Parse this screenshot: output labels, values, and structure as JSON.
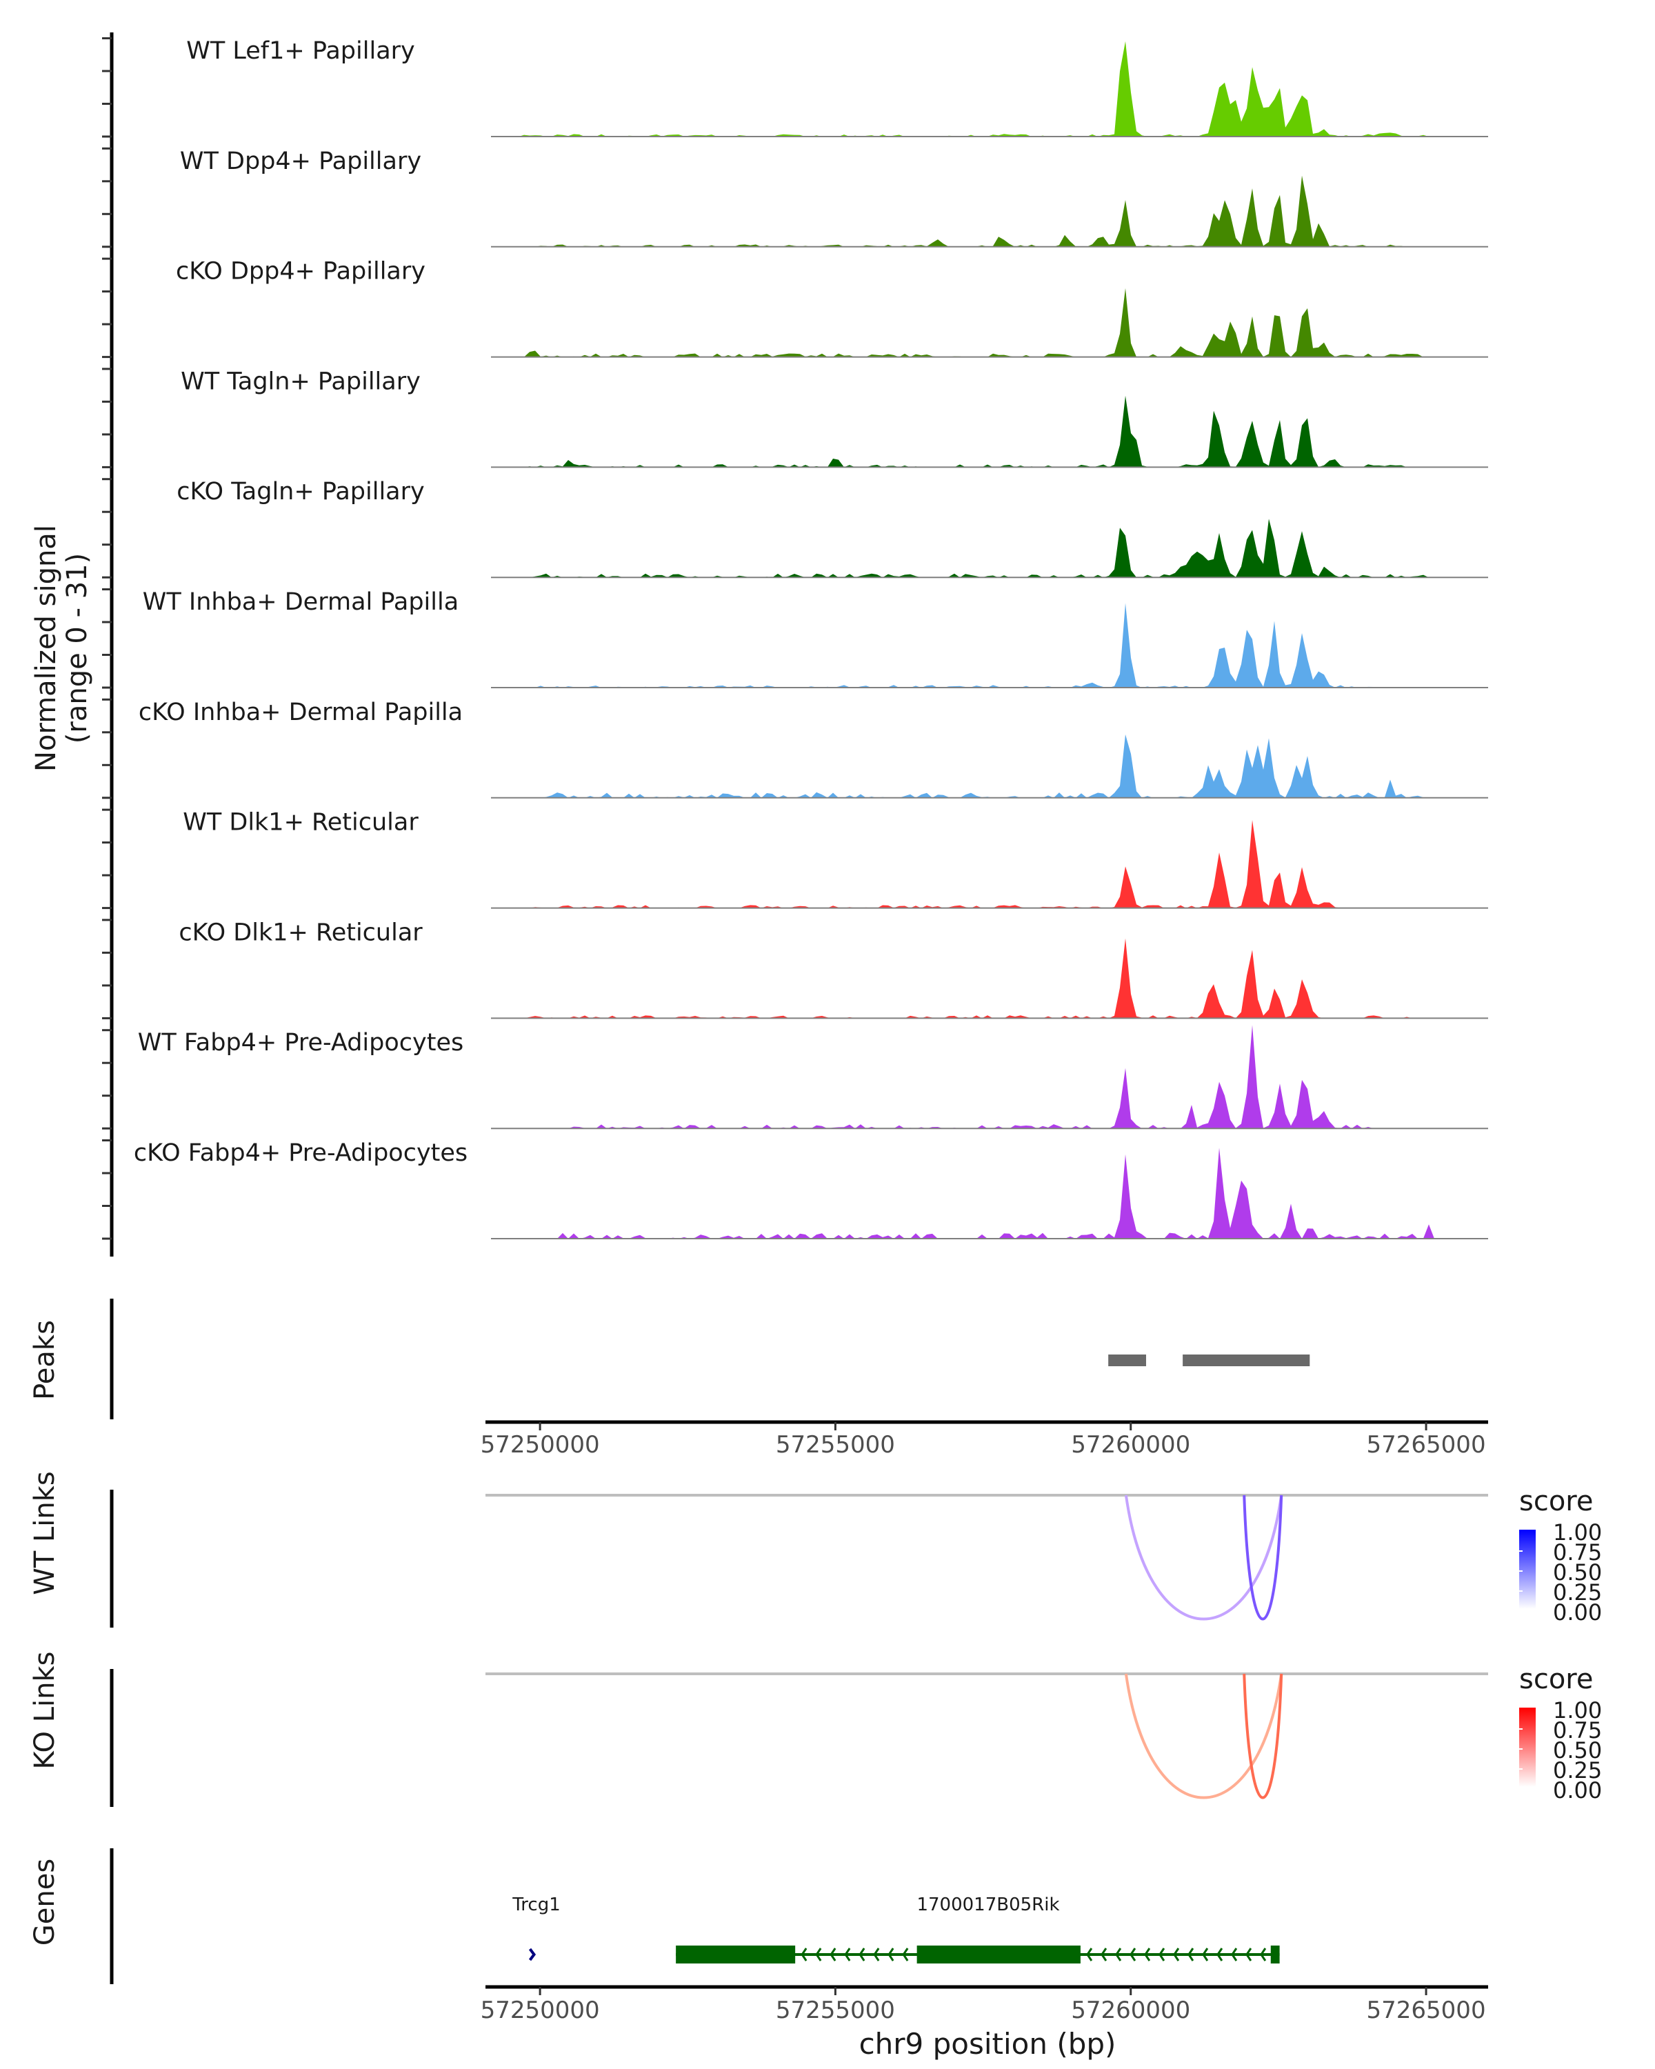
{
  "chart_data": {
    "type": "area",
    "title": "",
    "xlabel": "chr9 position (bp)",
    "ylabel": "Normalized signal\n(range 0 - 31)",
    "ylabel_lines": [
      "Normalized signal",
      "(range 0 - 31)"
    ],
    "ylim": [
      0,
      31
    ],
    "xlim": [
      57249170,
      57266050
    ],
    "x_ticks": [
      57250000,
      57255000,
      57260000,
      57265000
    ],
    "x_tick_labels": [
      "57250000",
      "57255000",
      "57260000",
      "57265000"
    ],
    "grid": false,
    "tracks": [
      {
        "name": "WT Lef1+ Papillary",
        "color": "#66cc00",
        "peaks": [
          [
            57259920,
            22,
            70
          ],
          [
            57259830,
            12,
            40
          ],
          [
            57261520,
            17,
            90
          ],
          [
            57261750,
            10,
            80
          ],
          [
            57262060,
            22,
            70
          ],
          [
            57262290,
            8,
            80
          ],
          [
            57262500,
            16,
            55
          ],
          [
            57262920,
            15,
            70
          ],
          [
            57262750,
            8,
            60
          ],
          [
            57263280,
            2,
            60
          ],
          [
            57264350,
            1.2,
            90
          ]
        ],
        "noise": [
          [
            57249700,
            57265000,
            0.9
          ]
        ]
      },
      {
        "name": "WT Dpp4+ Papillary",
        "color": "#448800",
        "peaks": [
          [
            57259900,
            16,
            60
          ],
          [
            57261450,
            9,
            90
          ],
          [
            57261650,
            14,
            70
          ],
          [
            57262050,
            21,
            65
          ],
          [
            57262480,
            20,
            60
          ],
          [
            57262920,
            22,
            70
          ],
          [
            57263200,
            6,
            60
          ],
          [
            57259500,
            4,
            60
          ],
          [
            57258900,
            3,
            60
          ],
          [
            57257800,
            3,
            60
          ],
          [
            57256700,
            2.5,
            60
          ]
        ],
        "noise": [
          [
            57250000,
            57265300,
            0.8
          ]
        ]
      },
      {
        "name": "cKO Dpp4+ Papillary",
        "color": "#448800",
        "peaks": [
          [
            57259900,
            18,
            55
          ],
          [
            57261400,
            9,
            70
          ],
          [
            57261700,
            14,
            70
          ],
          [
            57262050,
            12,
            60
          ],
          [
            57262480,
            14,
            60
          ],
          [
            57262950,
            16,
            65
          ],
          [
            57263250,
            5,
            70
          ],
          [
            57260900,
            3,
            80
          ],
          [
            57249880,
            3,
            40
          ]
        ],
        "noise": [
          [
            57249800,
            57265000,
            1.2
          ]
        ]
      },
      {
        "name": "WT Tagln+ Papillary",
        "color": "#006400",
        "peaks": [
          [
            57259900,
            17,
            60
          ],
          [
            57260050,
            10,
            50
          ],
          [
            57261450,
            16,
            80
          ],
          [
            57262050,
            12,
            90
          ],
          [
            57262500,
            14,
            60
          ],
          [
            57262950,
            14,
            70
          ],
          [
            57263400,
            3,
            60
          ],
          [
            57255000,
            3,
            40
          ],
          [
            57250500,
            3,
            50
          ]
        ],
        "noise": [
          [
            57249800,
            57264700,
            1.0
          ]
        ]
      },
      {
        "name": "cKO Tagln+ Papillary",
        "color": "#006400",
        "peaks": [
          [
            57259850,
            14,
            70
          ],
          [
            57261100,
            6,
            200
          ],
          [
            57261500,
            11,
            70
          ],
          [
            57262050,
            15,
            90
          ],
          [
            57262380,
            20,
            60
          ],
          [
            57262900,
            14,
            80
          ],
          [
            57263300,
            3,
            60
          ]
        ],
        "noise": [
          [
            57249800,
            57265100,
            1.3
          ]
        ]
      },
      {
        "name": "WT Inhba+ Dermal Papilla",
        "color": "#5daaeb",
        "peaks": [
          [
            57259920,
            22,
            60
          ],
          [
            57261550,
            12,
            100
          ],
          [
            57261980,
            20,
            80
          ],
          [
            57262430,
            18,
            60
          ],
          [
            57262900,
            17,
            70
          ],
          [
            57263200,
            6,
            80
          ],
          [
            57259300,
            1.5,
            80
          ]
        ],
        "noise": [
          [
            57250000,
            57264300,
            0.9
          ]
        ]
      },
      {
        "name": "cKO Inhba+ Dermal Papilla",
        "color": "#5daaeb",
        "peaks": [
          [
            57259930,
            22,
            60
          ],
          [
            57261300,
            9,
            60
          ],
          [
            57261500,
            10,
            60
          ],
          [
            57261950,
            14,
            60
          ],
          [
            57262150,
            16,
            60
          ],
          [
            57262350,
            14,
            60
          ],
          [
            57262800,
            11,
            60
          ],
          [
            57263000,
            11,
            60
          ],
          [
            57264400,
            5,
            40
          ]
        ],
        "noise": [
          [
            57249980,
            57265100,
            1.9
          ]
        ]
      },
      {
        "name": "WT Dlk1+ Reticular",
        "color": "#ff3333",
        "peaks": [
          [
            57259920,
            15,
            60
          ],
          [
            57261500,
            17,
            70
          ],
          [
            57262080,
            23,
            70
          ],
          [
            57262480,
            13,
            60
          ],
          [
            57262900,
            11,
            80
          ],
          [
            57263300,
            2,
            80
          ]
        ],
        "noise": [
          [
            57249850,
            57263300,
            1.0
          ]
        ]
      },
      {
        "name": "cKO Dlk1+ Reticular",
        "color": "#ff3333",
        "peaks": [
          [
            57259900,
            20,
            70
          ],
          [
            57261400,
            9,
            90
          ],
          [
            57262030,
            21,
            70
          ],
          [
            57262450,
            10,
            60
          ],
          [
            57262930,
            12,
            90
          ]
        ],
        "noise": [
          [
            57249800,
            57265100,
            1.0
          ]
        ]
      },
      {
        "name": "WT Fabp4+ Pre-Adipocytes",
        "color": "#b03ceb",
        "peaks": [
          [
            57259900,
            14,
            60
          ],
          [
            57261500,
            14,
            90
          ],
          [
            57262050,
            28,
            60
          ],
          [
            57262520,
            14,
            60
          ],
          [
            57262920,
            18,
            70
          ],
          [
            57263250,
            4,
            90
          ],
          [
            57261020,
            6,
            40
          ]
        ],
        "noise": [
          [
            57250500,
            57264300,
            1.5
          ]
        ]
      },
      {
        "name": "cKO Fabp4+ Pre-Adipocytes",
        "color": "#b03ceb",
        "peaks": [
          [
            57259920,
            20,
            70
          ],
          [
            57261510,
            25,
            60
          ],
          [
            57261900,
            17,
            100
          ],
          [
            57262720,
            12,
            50
          ],
          [
            57263050,
            5,
            40
          ],
          [
            57265030,
            6,
            25
          ]
        ],
        "noise": [
          [
            57250300,
            57265050,
            2.0
          ]
        ]
      }
    ],
    "peaks_track": {
      "label": "Peaks",
      "color": "#696969",
      "regions": [
        [
          57259620,
          57260260
        ],
        [
          57260880,
          57263030
        ]
      ]
    },
    "links_tracks": [
      {
        "label": "WT Links",
        "legend_title": "score",
        "high_color": "#0000ff",
        "links": [
          {
            "start": 57259920,
            "end": 57262550,
            "score": 0.4,
            "color": "#c4a3ff"
          },
          {
            "start": 57261920,
            "end": 57262550,
            "score": 0.75,
            "color": "#7a55ff"
          }
        ]
      },
      {
        "label": "KO Links",
        "legend_title": "score",
        "high_color": "#ff0000",
        "links": [
          {
            "start": 57259920,
            "end": 57262550,
            "score": 0.4,
            "color": "#ffad92"
          },
          {
            "start": 57261920,
            "end": 57262550,
            "score": 0.75,
            "color": "#ff6b50"
          }
        ]
      }
    ],
    "legend_ticks": [
      "1.00",
      "0.75",
      "0.50",
      "0.25",
      "0.00"
    ],
    "legend_placement": "right",
    "genes_track": {
      "label": "Genes",
      "genes": [
        {
          "name": "Trcg1",
          "strand": "+",
          "color": "#000080",
          "start": 57249830,
          "end": 57249900,
          "exons": []
        },
        {
          "name": "1700017B05Rik",
          "strand": "-",
          "color": "#006400",
          "start": 57252300,
          "end": 57262520,
          "exons": [
            [
              57252300,
              57254320
            ],
            [
              57256380,
              57259150
            ],
            [
              57262370,
              57262520
            ]
          ]
        }
      ]
    }
  }
}
